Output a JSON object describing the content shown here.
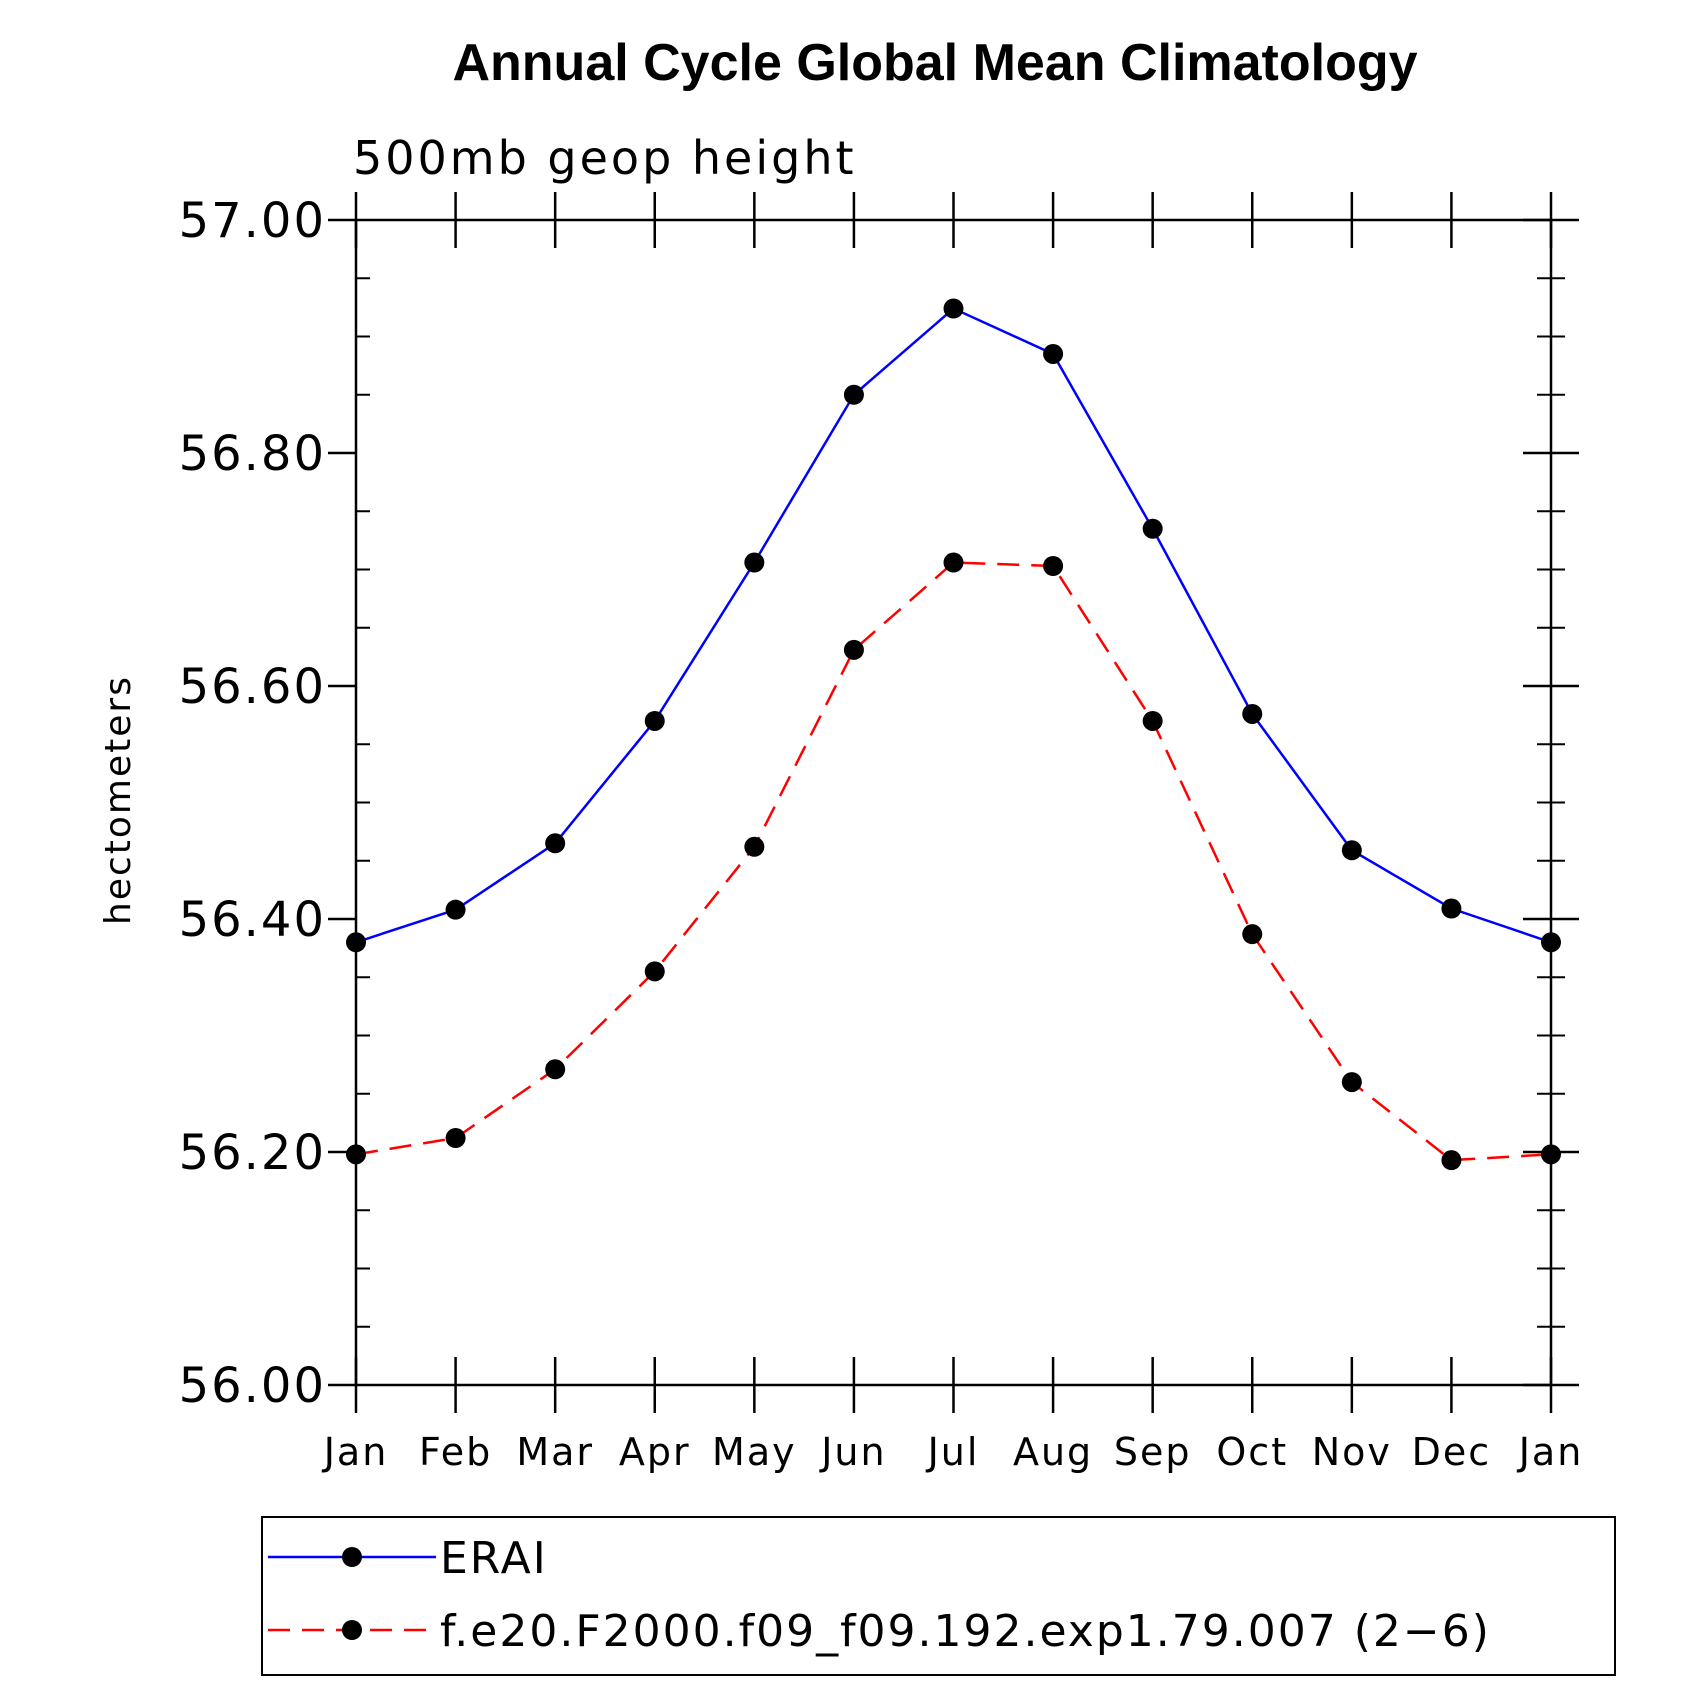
{
  "chart_data": {
    "type": "line",
    "title": "Annual Cycle Global Mean Climatology",
    "subtitle": "500mb geop height",
    "ylabel": "hectometers",
    "xlabel": "",
    "categories": [
      "Jan",
      "Feb",
      "Mar",
      "Apr",
      "May",
      "Jun",
      "Jul",
      "Aug",
      "Sep",
      "Oct",
      "Nov",
      "Dec",
      "Jan"
    ],
    "ylim": [
      56.0,
      57.0
    ],
    "yticks": [
      56.0,
      56.2,
      56.4,
      56.6,
      56.8,
      57.0
    ],
    "ytick_labels": [
      "56.00",
      "56.20",
      "56.40",
      "56.60",
      "56.80",
      "57.00"
    ],
    "y_minor_step": 0.05,
    "grid": false,
    "legend_position": "bottom",
    "series": [
      {
        "name": "ERAI",
        "color": "#0000ff",
        "dash": "solid",
        "marker": "filled-circle",
        "values": [
          56.38,
          56.408,
          56.465,
          56.57,
          56.706,
          56.85,
          56.924,
          56.885,
          56.735,
          56.576,
          56.459,
          56.409,
          56.38
        ]
      },
      {
        "name": "f.e20.F2000.f09_f09.192.exp1.79.007 (2−6)",
        "color": "#ff0000",
        "dash": "dashed",
        "marker": "filled-circle",
        "values": [
          56.198,
          56.212,
          56.271,
          56.355,
          56.462,
          56.631,
          56.706,
          56.703,
          56.57,
          56.387,
          56.26,
          56.193,
          56.198
        ]
      }
    ]
  }
}
